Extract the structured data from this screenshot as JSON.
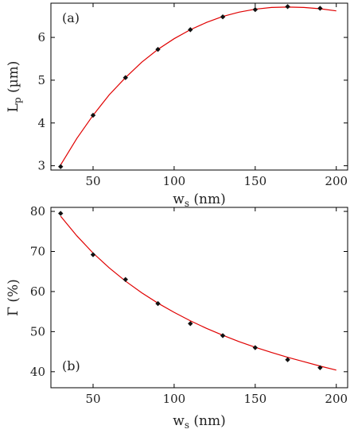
{
  "chart_data": [
    {
      "type": "scatter",
      "panel_label": "(a)",
      "xlabel_main": "w",
      "xlabel_sub": "s",
      "xlabel_unit": " (nm)",
      "ylabel_main": "L",
      "ylabel_sub": "p",
      "ylabel_unit": " (µm)",
      "xlim": [
        24,
        207
      ],
      "ylim": [
        2.9,
        6.8
      ],
      "xticks": [
        50,
        100,
        150,
        200
      ],
      "xtick_labels": [
        "50",
        "100",
        "150",
        "200"
      ],
      "yticks": [
        3,
        4,
        5,
        6
      ],
      "ytick_labels": [
        "3",
        "4",
        "5",
        "6"
      ],
      "grid": false,
      "marker_color": "#111111",
      "fit_color": "#e00000",
      "series": [
        {
          "x": [
            30,
            50,
            70,
            90,
            110,
            130,
            150,
            170,
            190
          ],
          "y": [
            2.98,
            4.18,
            5.06,
            5.72,
            6.18,
            6.48,
            6.65,
            6.72,
            6.68
          ]
        }
      ],
      "fit": {
        "x": [
          30,
          40,
          50,
          60,
          70,
          80,
          90,
          100,
          110,
          120,
          130,
          140,
          150,
          160,
          170,
          180,
          190,
          200
        ],
        "y": [
          3.02,
          3.64,
          4.18,
          4.66,
          5.06,
          5.42,
          5.72,
          5.97,
          6.18,
          6.35,
          6.49,
          6.59,
          6.66,
          6.7,
          6.71,
          6.7,
          6.67,
          6.62
        ]
      }
    },
    {
      "type": "scatter",
      "panel_label": "(b)",
      "xlabel_main": "w",
      "xlabel_sub": "s",
      "xlabel_unit": " (nm)",
      "ylabel_main": "Γ (%)",
      "ylabel_sub": "",
      "ylabel_unit": "",
      "xlim": [
        24,
        207
      ],
      "ylim": [
        36,
        81
      ],
      "xticks": [
        50,
        100,
        150,
        200
      ],
      "xtick_labels": [
        "50",
        "100",
        "150",
        "200"
      ],
      "yticks": [
        40,
        50,
        60,
        70,
        80
      ],
      "ytick_labels": [
        "40",
        "50",
        "60",
        "70",
        "80"
      ],
      "grid": false,
      "marker_color": "#111111",
      "fit_color": "#e00000",
      "series": [
        {
          "x": [
            30,
            50,
            70,
            90,
            110,
            130,
            150,
            170,
            190
          ],
          "y": [
            79.5,
            69.2,
            63.0,
            57.0,
            52.0,
            49.0,
            46.0,
            43.0,
            41.0
          ]
        }
      ],
      "fit": {
        "x": [
          30,
          40,
          50,
          60,
          70,
          80,
          90,
          100,
          110,
          120,
          130,
          140,
          150,
          160,
          170,
          180,
          190,
          200
        ],
        "y": [
          78.8,
          73.9,
          69.6,
          65.9,
          62.6,
          59.7,
          57.1,
          54.8,
          52.7,
          50.8,
          49.1,
          47.5,
          46.1,
          44.8,
          43.6,
          42.5,
          41.4,
          40.4
        ]
      }
    }
  ]
}
